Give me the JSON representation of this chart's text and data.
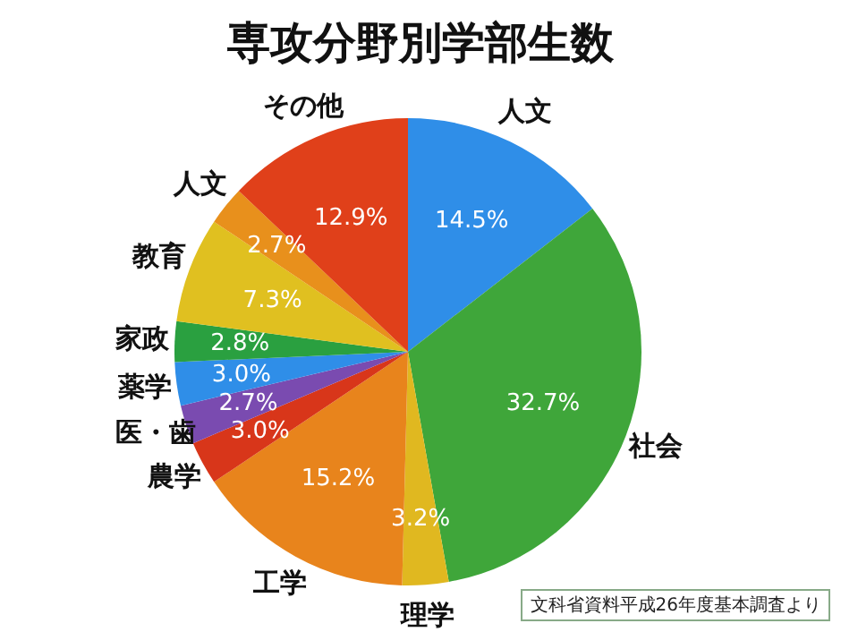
{
  "chart_data": {
    "type": "pie",
    "title": "専攻分野別学部生数",
    "categories": [
      "人文",
      "社会",
      "理学",
      "工学",
      "農学",
      "医・歯",
      "薬学",
      "家政",
      "教育",
      "人文",
      "その他"
    ],
    "values": [
      14.5,
      32.7,
      3.2,
      15.2,
      3.0,
      2.7,
      3.0,
      2.8,
      7.3,
      2.7,
      12.9
    ],
    "value_labels": [
      "14.5%",
      "32.7%",
      "3.2%",
      "15.2%",
      "3.0%",
      "2.7%",
      "3.0%",
      "2.8%",
      "7.3%",
      "2.7%",
      "12.9%"
    ],
    "colors": [
      "#2f8ee8",
      "#3fa63a",
      "#e0b820",
      "#e8841c",
      "#d8361a",
      "#7a4bb0",
      "#2f8ee8",
      "#2aa040",
      "#e0c020",
      "#e8901c",
      "#e0401a"
    ],
    "annotations": [
      "文科省資料平成26年度基本調査より"
    ],
    "legend": false
  }
}
